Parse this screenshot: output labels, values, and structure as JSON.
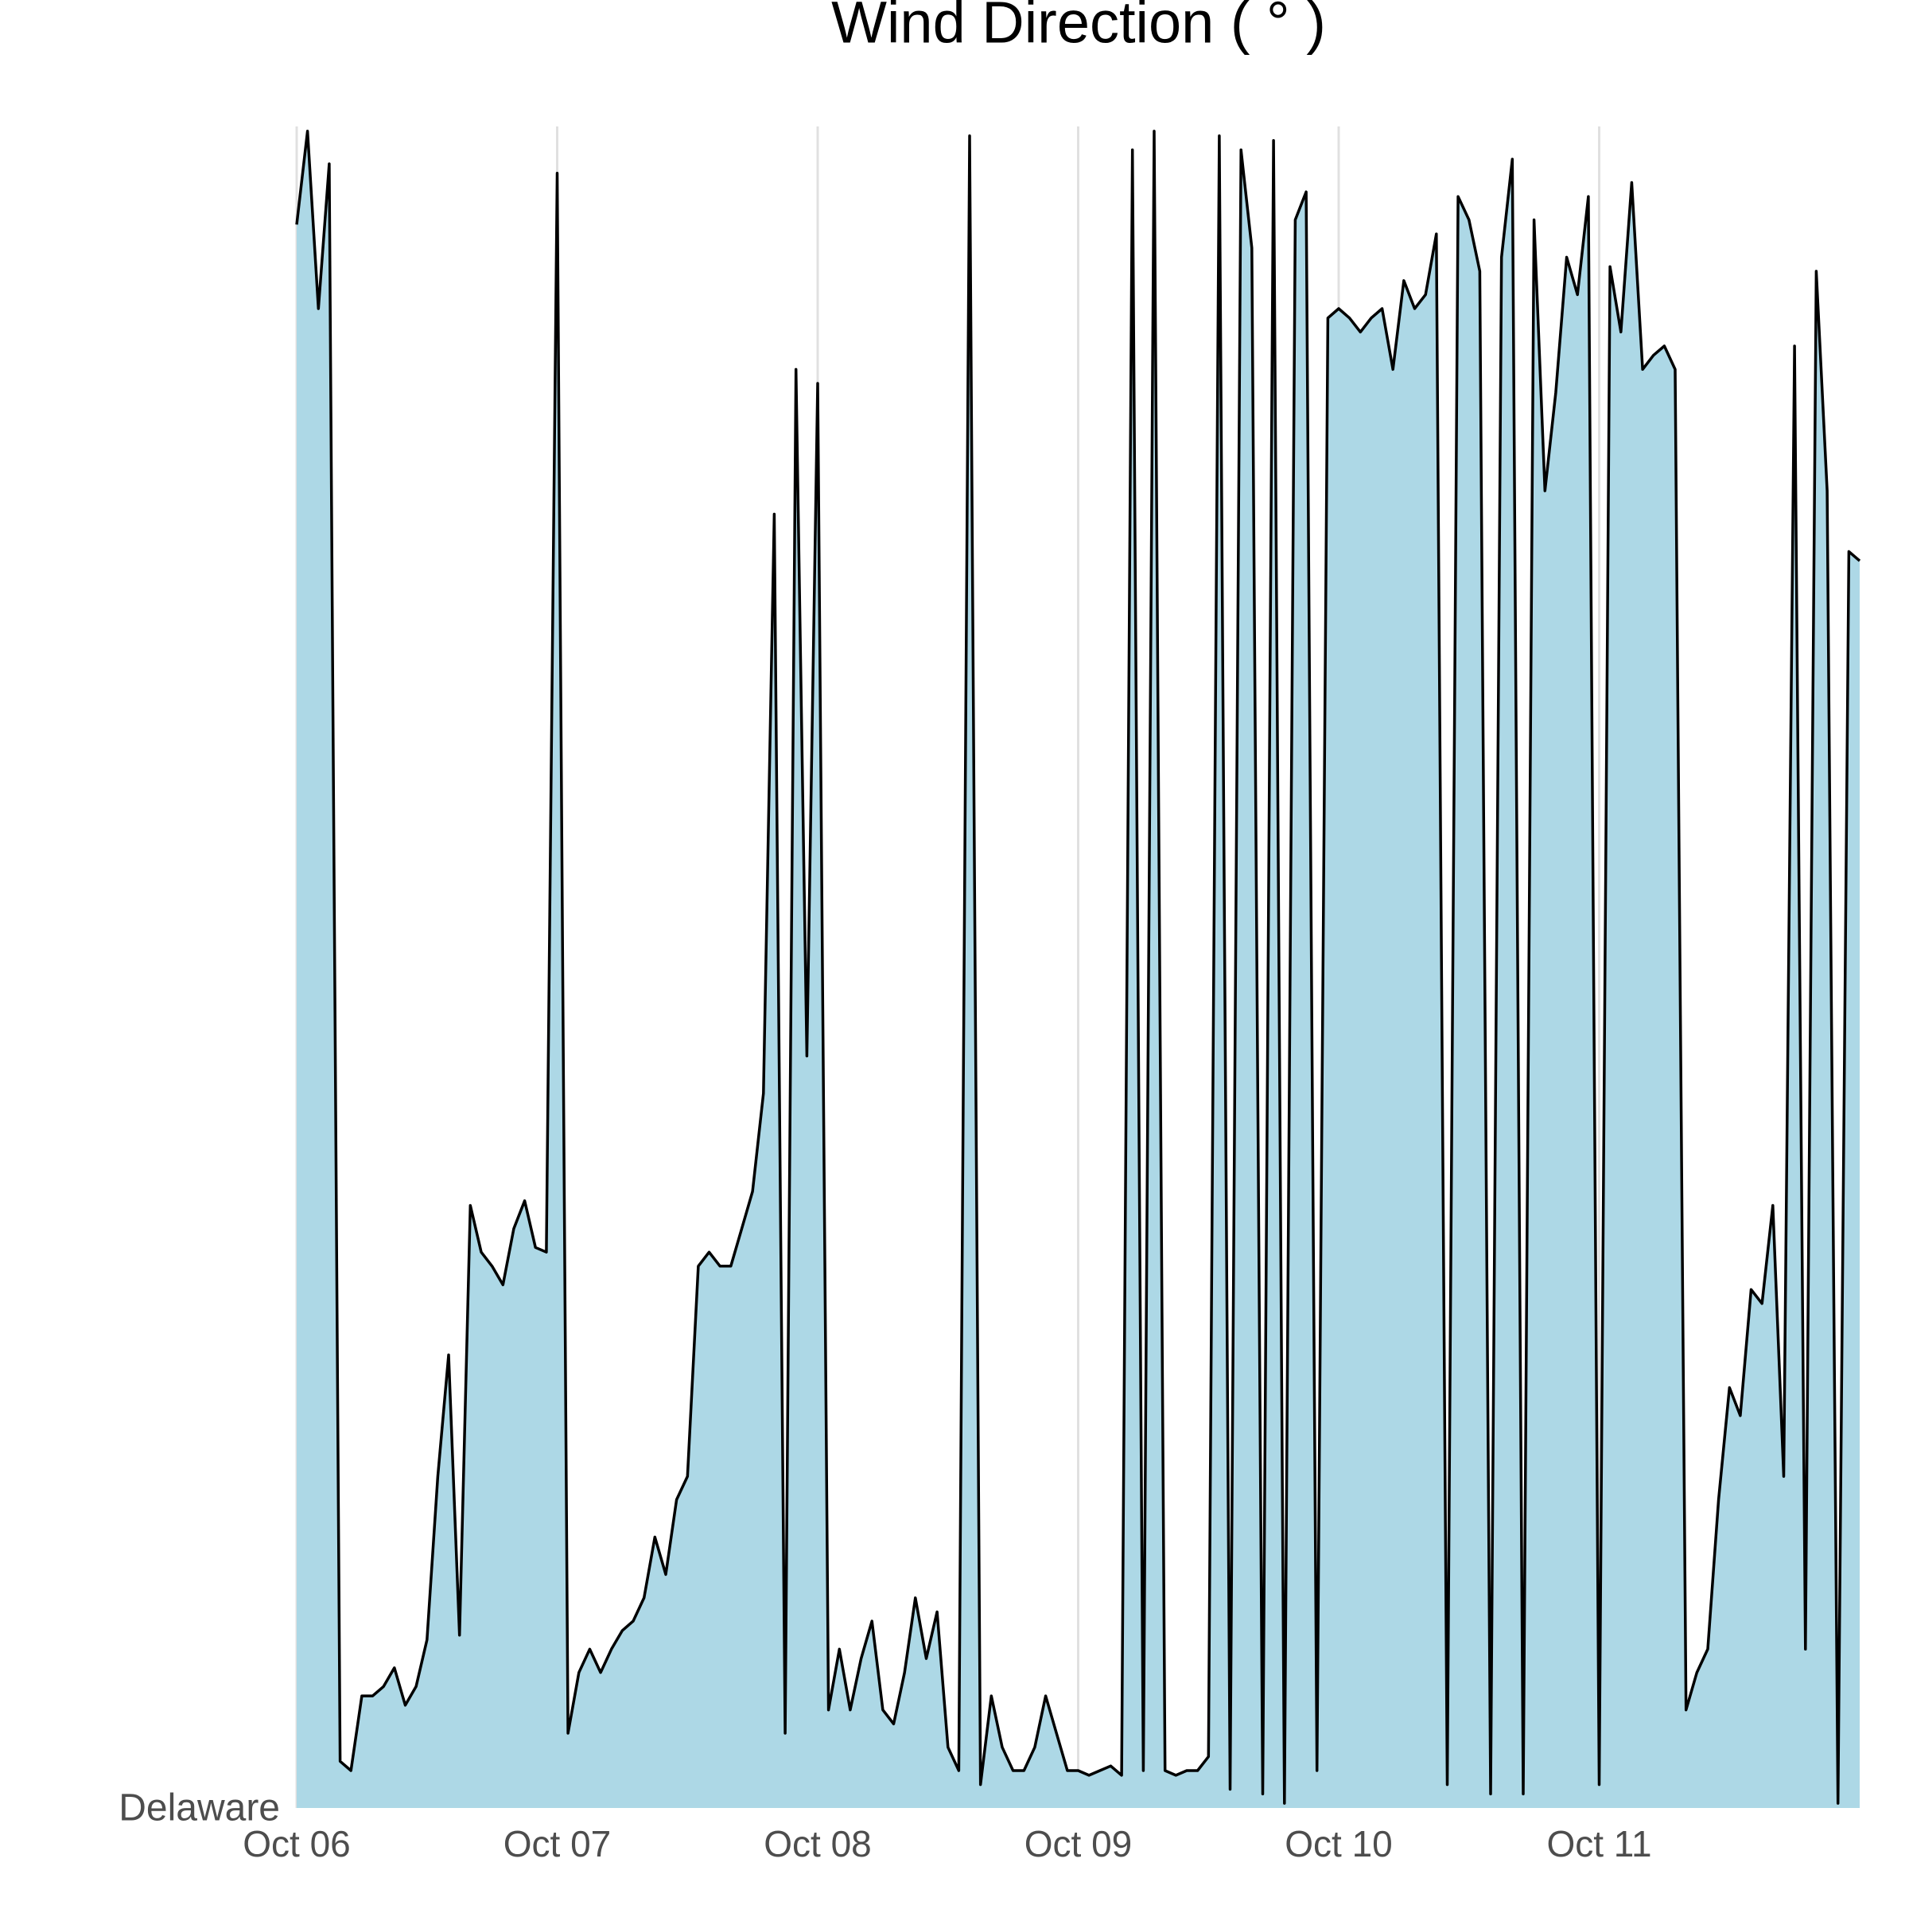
{
  "chart_data": {
    "type": "area",
    "title": "Wind Direction ( ° )",
    "categories": [
      "Delaware"
    ],
    "x": [
      0,
      1,
      2,
      3,
      4,
      5,
      6,
      7,
      8,
      9,
      10,
      11,
      12,
      13,
      14,
      15,
      16,
      17,
      18,
      19,
      20,
      21,
      22,
      23,
      24,
      25,
      26,
      27,
      28,
      29,
      30,
      31,
      32,
      33,
      34,
      35,
      36,
      37,
      38,
      39,
      40,
      41,
      42,
      43,
      44,
      45,
      46,
      47,
      48,
      49,
      50,
      51,
      52,
      53,
      54,
      55,
      56,
      57,
      58,
      59,
      60,
      61,
      62,
      63,
      64,
      65,
      66,
      67,
      68,
      69,
      70,
      71,
      72,
      73,
      74,
      75,
      76,
      77,
      78,
      79,
      80,
      81,
      82,
      83,
      84,
      85,
      86,
      87,
      88,
      89,
      90,
      91,
      92,
      93,
      94,
      95,
      96,
      97,
      98,
      99,
      100,
      101,
      102,
      103,
      104,
      105,
      106,
      107,
      108,
      109,
      110,
      111,
      112,
      113,
      114,
      115,
      116,
      117,
      118,
      119,
      120,
      121,
      122,
      123,
      124,
      125,
      126,
      127,
      128,
      129,
      130,
      131,
      132,
      133,
      134,
      135,
      136,
      137,
      138,
      139,
      140,
      141,
      142,
      143,
      144
    ],
    "series": [
      {
        "name": "Delaware",
        "color": "#add8e6",
        "line_color": "#000000",
        "values": [
          339,
          359,
          321,
          352,
          10,
          8,
          24,
          24,
          26,
          30,
          22,
          26,
          36,
          71,
          97,
          37,
          129,
          119,
          116,
          112,
          124,
          130,
          120,
          119,
          350,
          16,
          29,
          34,
          29,
          34,
          38,
          40,
          45,
          58,
          50,
          66,
          71,
          116,
          119,
          116,
          116,
          124,
          132,
          153,
          277,
          16,
          308,
          161,
          305,
          21,
          34,
          21,
          32,
          40,
          21,
          18,
          29,
          45,
          32,
          42,
          13,
          8,
          358,
          5,
          24,
          13,
          8,
          8,
          13,
          24,
          16,
          8,
          8,
          7,
          8,
          9,
          7,
          355,
          8,
          359,
          8,
          7,
          8,
          8,
          11,
          358,
          4,
          355,
          334,
          3,
          357,
          1,
          340,
          346,
          8,
          319,
          321,
          319,
          316,
          319,
          321,
          308,
          327,
          321,
          324,
          337,
          5,
          345,
          340,
          329,
          3,
          332,
          353,
          3,
          340,
          282,
          303,
          332,
          324,
          345,
          5,
          330,
          316,
          348,
          308,
          311,
          313,
          308,
          21,
          29,
          34,
          66,
          90,
          84,
          111,
          108,
          129,
          71,
          313,
          34,
          329,
          282,
          1,
          269,
          267
        ]
      }
    ],
    "xlim": [
      0,
      144
    ],
    "ylim": [
      0,
      360
    ],
    "xticks": [
      {
        "value": 0,
        "label": "Oct 06"
      },
      {
        "value": 24,
        "label": "Oct 07"
      },
      {
        "value": 48,
        "label": "Oct 08"
      },
      {
        "value": 72,
        "label": "Oct 09"
      },
      {
        "value": 96,
        "label": "Oct 10"
      },
      {
        "value": 120,
        "label": "Oct 11"
      }
    ],
    "grid": true
  }
}
